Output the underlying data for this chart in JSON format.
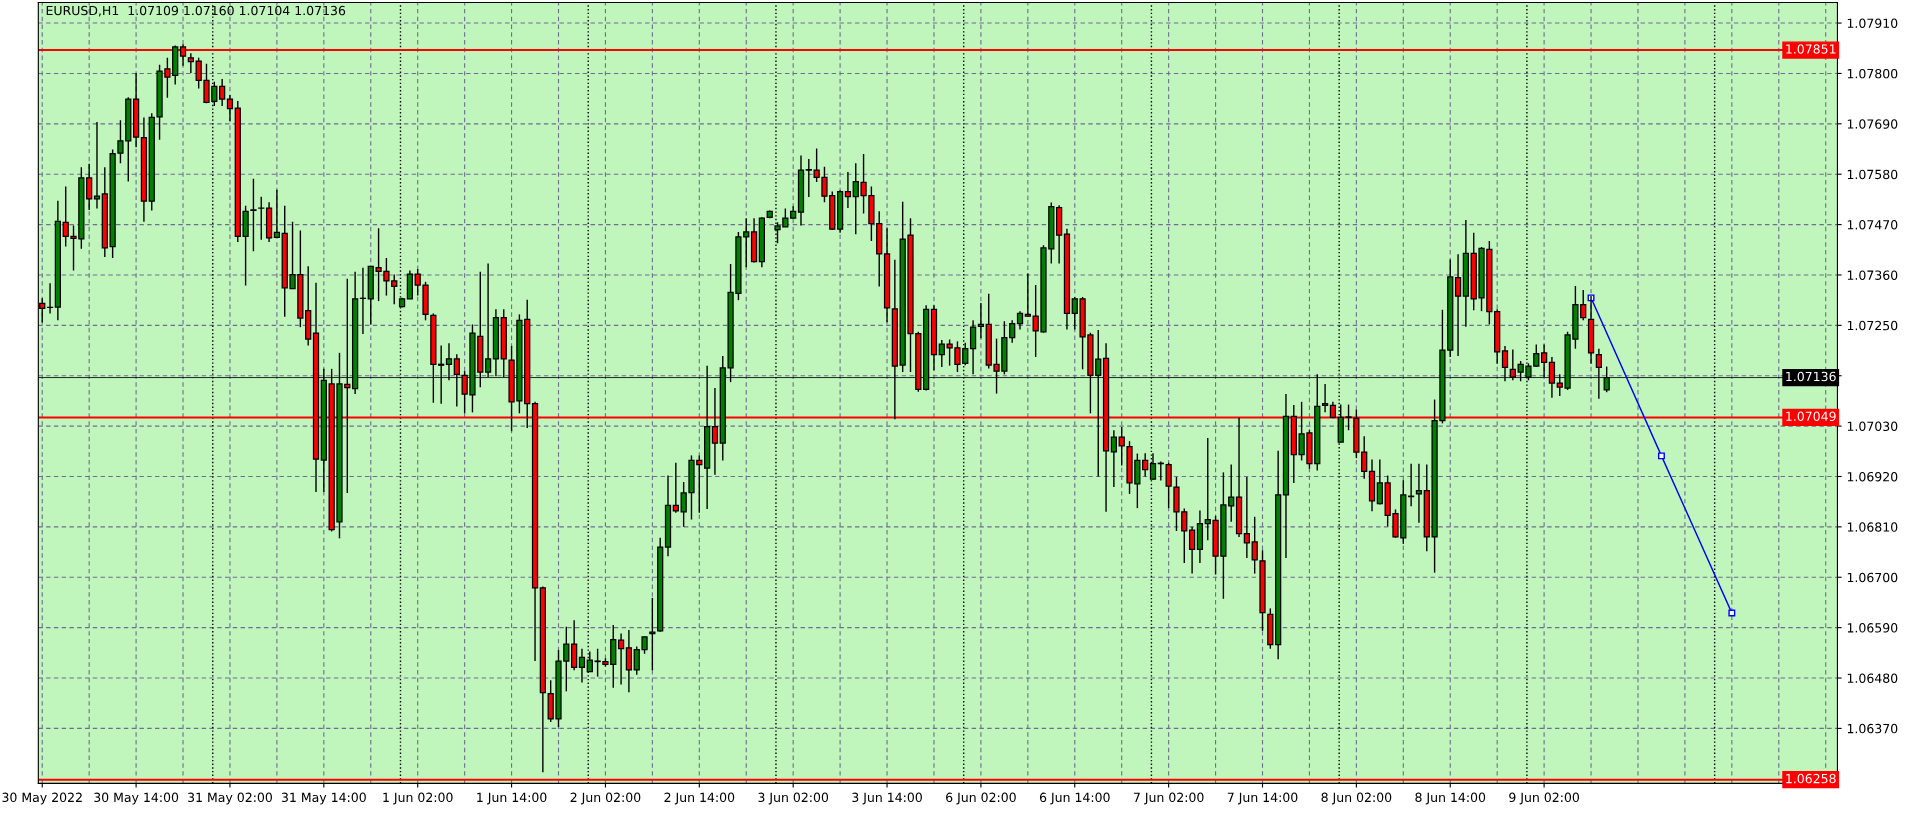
{
  "chart_data": {
    "type": "candlestick",
    "title": "EURUSD,H1  1.07109 1.07160 1.07104 1.07136",
    "categories": [
      "30 May 2022",
      null,
      null,
      null,
      null,
      null,
      null,
      null,
      null,
      null,
      null,
      null,
      "30 May 14:00",
      null,
      null,
      null,
      null,
      null,
      null,
      null,
      null,
      null,
      null,
      null,
      "31 May 02:00",
      null,
      null,
      null,
      null,
      null,
      null,
      null,
      null,
      null,
      null,
      null,
      "31 May 14:00",
      null,
      null,
      null,
      null,
      null,
      null,
      null,
      null,
      null,
      null,
      null,
      "1 Jun 02:00",
      null,
      null,
      null,
      null,
      null,
      null,
      null,
      null,
      null,
      null,
      null,
      "1 Jun 14:00",
      null,
      null,
      null,
      null,
      null,
      null,
      null,
      null,
      null,
      null,
      null,
      "2 Jun 02:00",
      null,
      null,
      null,
      null,
      null,
      null,
      null,
      null,
      null,
      null,
      null,
      "2 Jun 14:00",
      null,
      null,
      null,
      null,
      null,
      null,
      null,
      null,
      null,
      null,
      null,
      "3 Jun 02:00",
      null,
      null,
      null,
      null,
      null,
      null,
      null,
      null,
      null,
      null,
      null,
      "3 Jun 14:00",
      null,
      null,
      null,
      null,
      null,
      null,
      null,
      null,
      null,
      null,
      null,
      "6 Jun 02:00",
      null,
      null,
      null,
      null,
      null,
      null,
      null,
      null,
      null,
      null,
      null,
      "6 Jun 14:00",
      null,
      null,
      null,
      null,
      null,
      null,
      null,
      null,
      null,
      null,
      null,
      "7 Jun 02:00",
      null,
      null,
      null,
      null,
      null,
      null,
      null,
      null,
      null,
      null,
      null,
      "7 Jun 14:00",
      null,
      null,
      null,
      null,
      null,
      null,
      null,
      null,
      null,
      null,
      null,
      "8 Jun 02:00",
      null,
      null,
      null,
      null,
      null,
      null,
      null,
      null,
      null,
      null,
      null,
      "8 Jun 14:00",
      null,
      null,
      null,
      null,
      null,
      null,
      null,
      null,
      null,
      null,
      null,
      "9 Jun 02:00",
      null,
      null,
      null,
      null,
      null,
      null,
      null,
      null,
      null,
      null,
      null,
      null,
      null,
      null,
      null,
      null,
      null,
      null,
      null,
      null,
      null,
      null,
      null,
      null,
      null,
      null,
      null,
      null,
      null,
      null,
      null,
      null,
      null,
      null,
      null,
      null,
      null
    ],
    "ylim": [
      1.0625,
      1.07955
    ],
    "yticks": [
      {
        "value": 1.0637,
        "label": "1.06370"
      },
      {
        "value": 1.0648,
        "label": "1.06480"
      },
      {
        "value": 1.0659,
        "label": "1.06590"
      },
      {
        "value": 1.067,
        "label": "1.06700"
      },
      {
        "value": 1.0681,
        "label": "1.06810"
      },
      {
        "value": 1.0692,
        "label": "1.06920"
      },
      {
        "value": 1.0703,
        "label": "1.07030"
      },
      {
        "value": 1.0714,
        "label": null
      },
      {
        "value": 1.0725,
        "label": "1.07250"
      },
      {
        "value": 1.0736,
        "label": "1.07360"
      },
      {
        "value": 1.0747,
        "label": "1.07470"
      },
      {
        "value": 1.0758,
        "label": "1.07580"
      },
      {
        "value": 1.0769,
        "label": "1.07690"
      },
      {
        "value": 1.078,
        "label": "1.07800"
      },
      {
        "value": 1.0791,
        "label": "1.07910"
      }
    ],
    "grid": true,
    "ref_lines": [
      {
        "axis": "y",
        "value": 1.07851,
        "label": "1.07851",
        "color": "#ff0000",
        "line_style": "solid"
      },
      {
        "axis": "y",
        "value": 1.07049,
        "label": "1.07049",
        "color": "#ff0000",
        "line_style": "solid"
      },
      {
        "axis": "y",
        "value": 1.06258,
        "label": "1.06258",
        "color": "#ff0000",
        "line_style": "solid"
      },
      {
        "axis": "y",
        "value": 1.07136,
        "label": "1.07136",
        "color": "#000000",
        "line_style": "solid"
      }
    ],
    "series": [
      {
        "ohlc": [
          [
            1.07298,
            1.07309,
            1.07256,
            1.07287
          ],
          [
            1.07289,
            1.07342,
            1.07276,
            1.07289
          ],
          [
            1.0729,
            1.07522,
            1.07261,
            1.07477
          ],
          [
            1.07475,
            1.07553,
            1.07422,
            1.07444
          ],
          [
            1.07444,
            1.07468,
            1.0737,
            1.0744
          ],
          [
            1.07439,
            1.07595,
            1.07417,
            1.07572
          ],
          [
            1.07572,
            1.07603,
            1.07502,
            1.07526
          ],
          [
            1.07526,
            1.07694,
            1.07505,
            1.07532
          ],
          [
            1.07537,
            1.07595,
            1.07399,
            1.07419
          ],
          [
            1.07422,
            1.07634,
            1.07397,
            1.07625
          ],
          [
            1.07626,
            1.07698,
            1.07604,
            1.07653
          ],
          [
            1.07653,
            1.07748,
            1.07564,
            1.07744
          ],
          [
            1.07744,
            1.07801,
            1.07639,
            1.07661
          ],
          [
            1.0766,
            1.07704,
            1.07476,
            1.07521
          ],
          [
            1.07521,
            1.07713,
            1.07501,
            1.07704
          ],
          [
            1.07705,
            1.07819,
            1.07655,
            1.07805
          ],
          [
            1.0781,
            1.07834,
            1.07747,
            1.07792
          ],
          [
            1.07796,
            1.07861,
            1.07776,
            1.07858
          ],
          [
            1.07858,
            1.07864,
            1.07817,
            1.07838
          ],
          [
            1.07834,
            1.07844,
            1.07801,
            1.07826
          ],
          [
            1.07827,
            1.07834,
            1.07767,
            1.07785
          ],
          [
            1.07785,
            1.07821,
            1.07735,
            1.07737
          ],
          [
            1.07739,
            1.07782,
            1.07729,
            1.07772
          ],
          [
            1.07772,
            1.07788,
            1.07729,
            1.07744
          ],
          [
            1.07744,
            1.07753,
            1.07696,
            1.07723
          ],
          [
            1.07724,
            1.0774,
            1.07432,
            1.07444
          ],
          [
            1.07444,
            1.07511,
            1.07337,
            1.07499
          ],
          [
            1.07502,
            1.0757,
            1.07412,
            1.07501
          ],
          [
            1.07506,
            1.07531,
            1.07437,
            1.07506
          ],
          [
            1.07506,
            1.07519,
            1.07432,
            1.07441
          ],
          [
            1.07442,
            1.07546,
            1.07441,
            1.07453
          ],
          [
            1.07451,
            1.07511,
            1.07269,
            1.07332
          ],
          [
            1.0733,
            1.07476,
            1.0733,
            1.07361
          ],
          [
            1.07361,
            1.07457,
            1.07246,
            1.07266
          ],
          [
            1.07282,
            1.07379,
            1.07206,
            1.0722
          ],
          [
            1.07233,
            1.07343,
            1.06886,
            1.06958
          ],
          [
            1.06956,
            1.07155,
            1.06886,
            1.0713
          ],
          [
            1.07122,
            1.07155,
            1.068,
            1.06804
          ],
          [
            1.06821,
            1.0719,
            1.06785,
            1.07122
          ],
          [
            1.07121,
            1.07352,
            1.06884,
            1.07114
          ],
          [
            1.07112,
            1.07367,
            1.071,
            1.07308
          ],
          [
            1.07309,
            1.07376,
            1.07231,
            1.07309
          ],
          [
            1.07308,
            1.07379,
            1.07252,
            1.07379
          ],
          [
            1.07376,
            1.07462,
            1.07303,
            1.07368
          ],
          [
            1.07368,
            1.07397,
            1.07315,
            1.07347
          ],
          [
            1.07347,
            1.07361,
            1.07296,
            1.07335
          ],
          [
            1.07291,
            1.0731,
            1.07289,
            1.07308
          ],
          [
            1.07308,
            1.0737,
            1.07308,
            1.07362
          ],
          [
            1.07362,
            1.07373,
            1.07315,
            1.07338
          ],
          [
            1.07338,
            1.07345,
            1.07261,
            1.07274
          ],
          [
            1.07272,
            1.07276,
            1.07081,
            1.07165
          ],
          [
            1.07165,
            1.07206,
            1.07079,
            1.07163
          ],
          [
            1.07165,
            1.07211,
            1.0713,
            1.07177
          ],
          [
            1.07177,
            1.07187,
            1.07073,
            1.07143
          ],
          [
            1.07141,
            1.0715,
            1.07058,
            1.071
          ],
          [
            1.07098,
            1.07252,
            1.0706,
            1.07233
          ],
          [
            1.07226,
            1.07367,
            1.07115,
            1.07148
          ],
          [
            1.07148,
            1.07385,
            1.07137,
            1.07177
          ],
          [
            1.07177,
            1.07285,
            1.07139,
            1.07267
          ],
          [
            1.07267,
            1.07285,
            1.07137,
            1.07177
          ],
          [
            1.07174,
            1.07205,
            1.07019,
            1.07083
          ],
          [
            1.07085,
            1.07274,
            1.07058,
            1.07261
          ],
          [
            1.07263,
            1.07306,
            1.07026,
            1.07079
          ],
          [
            1.07079,
            1.07083,
            1.06517,
            1.06677
          ],
          [
            1.06677,
            1.0668,
            1.06274,
            1.06448
          ],
          [
            1.06446,
            1.06475,
            1.06384,
            1.06391
          ],
          [
            1.06391,
            1.06541,
            1.06373,
            1.06517
          ],
          [
            1.06517,
            1.06592,
            1.06451,
            1.06554
          ],
          [
            1.06554,
            1.06606,
            1.06497,
            1.06503
          ],
          [
            1.06503,
            1.06544,
            1.0647,
            1.06525
          ],
          [
            1.06494,
            1.06538,
            1.06494,
            1.06519
          ],
          [
            1.06517,
            1.06544,
            1.06483,
            1.06516
          ],
          [
            1.06516,
            1.06523,
            1.06505,
            1.0651
          ],
          [
            1.0651,
            1.06596,
            1.06459,
            1.06564
          ],
          [
            1.06563,
            1.06577,
            1.06466,
            1.06544
          ],
          [
            1.06546,
            1.06585,
            1.06449,
            1.06498
          ],
          [
            1.06498,
            1.06549,
            1.06487,
            1.06542
          ],
          [
            1.06542,
            1.0657,
            1.06533,
            1.0657
          ],
          [
            1.06577,
            1.06655,
            1.06497,
            1.0658
          ],
          [
            1.06583,
            1.06786,
            1.06581,
            1.06766
          ],
          [
            1.06766,
            1.06922,
            1.06746,
            1.06857
          ],
          [
            1.06857,
            1.0695,
            1.06841,
            1.06845
          ],
          [
            1.06843,
            1.06908,
            1.0681,
            1.06884
          ],
          [
            1.06885,
            1.06966,
            1.06826,
            1.06955
          ],
          [
            1.06955,
            1.06966,
            1.06841,
            1.06946
          ],
          [
            1.06938,
            1.07162,
            1.06849,
            1.07029
          ],
          [
            1.07029,
            1.07113,
            1.06924,
            1.06993
          ],
          [
            1.06993,
            1.07183,
            1.06955,
            1.07157
          ],
          [
            1.07157,
            1.07384,
            1.07126,
            1.07322
          ],
          [
            1.0732,
            1.07454,
            1.07305,
            1.07443
          ],
          [
            1.07443,
            1.07484,
            1.07377,
            1.07454
          ],
          [
            1.07454,
            1.07484,
            1.07387,
            1.07389
          ],
          [
            1.07389,
            1.07486,
            1.07377,
            1.07484
          ],
          [
            1.07486,
            1.07501,
            1.07484,
            1.07499
          ],
          [
            1.07459,
            1.07475,
            1.07429,
            1.07467
          ],
          [
            1.07465,
            1.07505,
            1.07465,
            1.07484
          ],
          [
            1.07484,
            1.0751,
            1.07484,
            1.07499
          ],
          [
            1.07497,
            1.07621,
            1.07468,
            1.07589
          ],
          [
            1.07589,
            1.07613,
            1.0753,
            1.0759
          ],
          [
            1.07589,
            1.07636,
            1.07563,
            1.07573
          ],
          [
            1.07573,
            1.07596,
            1.07519,
            1.07532
          ],
          [
            1.07533,
            1.07542,
            1.07458,
            1.0746
          ],
          [
            1.0746,
            1.07545,
            1.07452,
            1.07542
          ],
          [
            1.07542,
            1.07585,
            1.07506,
            1.07531
          ],
          [
            1.07531,
            1.07604,
            1.07449,
            1.07564
          ],
          [
            1.07562,
            1.07624,
            1.07494,
            1.07533
          ],
          [
            1.07533,
            1.07553,
            1.07434,
            1.07472
          ],
          [
            1.07472,
            1.07499,
            1.07335,
            1.07406
          ],
          [
            1.07406,
            1.07462,
            1.07257,
            1.07288
          ],
          [
            1.07286,
            1.07393,
            1.07045,
            1.07161
          ],
          [
            1.07163,
            1.0752,
            1.07148,
            1.07438
          ],
          [
            1.07447,
            1.07484,
            1.07148,
            1.07232
          ],
          [
            1.07232,
            1.07236,
            1.07105,
            1.0711
          ],
          [
            1.0711,
            1.07294,
            1.07108,
            1.07285
          ],
          [
            1.07285,
            1.07294,
            1.07152,
            1.07186
          ],
          [
            1.07186,
            1.07218,
            1.07159,
            1.07209
          ],
          [
            1.07209,
            1.07219,
            1.07162,
            1.07201
          ],
          [
            1.07201,
            1.07215,
            1.07148,
            1.07165
          ],
          [
            1.07167,
            1.07212,
            1.07163,
            1.07199
          ],
          [
            1.07199,
            1.07261,
            1.07143,
            1.07246
          ],
          [
            1.07248,
            1.07299,
            1.07222,
            1.07252
          ],
          [
            1.07252,
            1.07319,
            1.07156,
            1.07163
          ],
          [
            1.07165,
            1.07221,
            1.07101,
            1.0715
          ],
          [
            1.0715,
            1.07259,
            1.07143,
            1.07223
          ],
          [
            1.07223,
            1.07261,
            1.07212,
            1.07254
          ],
          [
            1.07254,
            1.07281,
            1.07241,
            1.07276
          ],
          [
            1.07274,
            1.07363,
            1.07268,
            1.0727
          ],
          [
            1.0727,
            1.07338,
            1.07181,
            1.07238
          ],
          [
            1.07236,
            1.07425,
            1.07234,
            1.07419
          ],
          [
            1.07417,
            1.07518,
            1.07385,
            1.07509
          ],
          [
            1.07507,
            1.07512,
            1.07385,
            1.07447
          ],
          [
            1.07449,
            1.07461,
            1.07241,
            1.07276
          ],
          [
            1.07276,
            1.07312,
            1.07241,
            1.07308
          ],
          [
            1.07308,
            1.07312,
            1.07154,
            1.07225
          ],
          [
            1.07229,
            1.07234,
            1.07058,
            1.07141
          ],
          [
            1.07141,
            1.0724,
            1.0692,
            1.07176
          ],
          [
            1.07178,
            1.07211,
            1.06843,
            1.06976
          ],
          [
            1.06974,
            1.07021,
            1.06897,
            1.07006
          ],
          [
            1.07006,
            1.07028,
            1.06944,
            1.06987
          ],
          [
            1.06985,
            1.06997,
            1.06882,
            1.06906
          ],
          [
            1.06904,
            1.0697,
            1.06851,
            1.06955
          ],
          [
            1.06955,
            1.06971,
            1.0692,
            1.06935
          ],
          [
            1.06914,
            1.06971,
            1.06914,
            1.06948
          ],
          [
            1.06948,
            1.06953,
            1.06911,
            1.06949
          ],
          [
            1.06946,
            1.0695,
            1.06851,
            1.06899
          ],
          [
            1.06897,
            1.06919,
            1.06801,
            1.06843
          ],
          [
            1.06843,
            1.0685,
            1.06731,
            1.06801
          ],
          [
            1.06803,
            1.0681,
            1.06708,
            1.06761
          ],
          [
            1.06761,
            1.06846,
            1.06731,
            1.06817
          ],
          [
            1.06817,
            1.07004,
            1.06781,
            1.06826
          ],
          [
            1.06824,
            1.06834,
            1.06706,
            1.06746
          ],
          [
            1.06746,
            1.06929,
            1.06653,
            1.06858
          ],
          [
            1.06856,
            1.06946,
            1.06821,
            1.06875
          ],
          [
            1.06875,
            1.07049,
            1.06788,
            1.06795
          ],
          [
            1.06795,
            1.06919,
            1.06742,
            1.06775
          ],
          [
            1.06777,
            1.06832,
            1.06708,
            1.06738
          ],
          [
            1.06736,
            1.06759,
            1.06583,
            1.06623
          ],
          [
            1.06619,
            1.06632,
            1.06544,
            1.06553
          ],
          [
            1.06553,
            1.06976,
            1.06521,
            1.0688
          ],
          [
            1.0688,
            1.071,
            1.06742,
            1.07051
          ],
          [
            1.07051,
            1.07076,
            1.06906,
            1.06968
          ],
          [
            1.06968,
            1.07083,
            1.06955,
            1.07013
          ],
          [
            1.07015,
            1.07021,
            1.06937,
            1.06948
          ],
          [
            1.06948,
            1.07143,
            1.06933,
            1.07073
          ],
          [
            1.07075,
            1.07122,
            1.0706,
            1.07079
          ],
          [
            1.07075,
            1.07083,
            1.07047,
            1.07049
          ],
          [
            1.06995,
            1.07077,
            1.06995,
            1.07049
          ],
          [
            1.07049,
            1.07077,
            1.07021,
            1.0705
          ],
          [
            1.07047,
            1.07066,
            1.0696,
            1.06973
          ],
          [
            1.06973,
            1.07008,
            1.06915,
            1.06931
          ],
          [
            1.06931,
            1.06957,
            1.06844,
            1.06867
          ],
          [
            1.06861,
            1.06957,
            1.06859,
            1.06906
          ],
          [
            1.06906,
            1.06922,
            1.06811,
            1.06835
          ],
          [
            1.06839,
            1.06848,
            1.06786,
            1.06788
          ],
          [
            1.06786,
            1.06912,
            1.06773,
            1.0688
          ],
          [
            1.06877,
            1.06948,
            1.06855,
            1.06876
          ],
          [
            1.06882,
            1.06948,
            1.06819,
            1.06889
          ],
          [
            1.06889,
            1.06946,
            1.06757,
            1.06788
          ],
          [
            1.06788,
            1.07088,
            1.0671,
            1.07042
          ],
          [
            1.07042,
            1.07284,
            1.07036,
            1.07196
          ],
          [
            1.07196,
            1.07394,
            1.07181,
            1.07356
          ],
          [
            1.07354,
            1.07405,
            1.07183,
            1.07314
          ],
          [
            1.07314,
            1.0748,
            1.07247,
            1.07407
          ],
          [
            1.07407,
            1.07452,
            1.07283,
            1.07308
          ],
          [
            1.0731,
            1.07421,
            1.07281,
            1.07418
          ],
          [
            1.07416,
            1.07434,
            1.07252,
            1.0728
          ],
          [
            1.0728,
            1.07285,
            1.07166,
            1.07192
          ],
          [
            1.07194,
            1.07205,
            1.07128,
            1.07158
          ],
          [
            1.07154,
            1.07197,
            1.0713,
            1.07137
          ],
          [
            1.07148,
            1.07172,
            1.07128,
            1.07165
          ],
          [
            1.07137,
            1.07167,
            1.0713,
            1.07161
          ],
          [
            1.07161,
            1.07208,
            1.07159,
            1.07188
          ],
          [
            1.0719,
            1.07208,
            1.07137,
            1.07169
          ],
          [
            1.07169,
            1.07181,
            1.07092,
            1.07124
          ],
          [
            1.07124,
            1.07143,
            1.07096,
            1.07115
          ],
          [
            1.07113,
            1.07236,
            1.07109,
            1.07229
          ],
          [
            1.0722,
            1.07336,
            1.07199,
            1.07295
          ],
          [
            1.07295,
            1.07327,
            1.07261,
            1.07267
          ],
          [
            1.07263,
            1.07314,
            1.07166,
            1.0719
          ],
          [
            1.07186,
            1.07199,
            1.0709,
            1.07158
          ],
          [
            1.07109,
            1.0716,
            1.07104,
            1.07136
          ],
          null,
          null,
          null,
          null,
          null,
          null,
          null,
          null,
          null,
          null,
          null,
          null,
          null,
          null,
          null,
          null,
          null,
          null,
          null,
          null,
          null,
          null,
          null,
          null,
          null,
          null,
          null,
          null,
          null
        ],
        "colors": [
          "#ff0000",
          "#ff0000",
          "#008000",
          "#ff0000",
          "#ff0000",
          "#008000",
          "#ff0000",
          "#008000",
          "#ff0000",
          "#008000",
          "#008000",
          "#008000",
          "#ff0000",
          "#ff0000",
          "#008000",
          "#008000",
          "#ff0000",
          "#008000",
          "#ff0000",
          "#ff0000",
          "#ff0000",
          "#ff0000",
          "#008000",
          "#ff0000",
          "#ff0000",
          "#ff0000",
          "#008000",
          "#ff0000",
          "#ff0000",
          "#ff0000",
          "#008000",
          "#ff0000",
          "#008000",
          "#ff0000",
          "#ff0000",
          "#ff0000",
          "#008000",
          "#ff0000",
          "#008000",
          "#ff0000",
          "#008000",
          "#ff0000",
          "#008000",
          "#ff0000",
          "#ff0000",
          "#ff0000",
          "#008000",
          "#008000",
          "#ff0000",
          "#ff0000",
          "#ff0000",
          "#ff0000",
          "#008000",
          "#ff0000",
          "#ff0000",
          "#008000",
          "#ff0000",
          "#008000",
          "#008000",
          "#ff0000",
          "#ff0000",
          "#008000",
          "#ff0000",
          "#ff0000",
          "#ff0000",
          "#ff0000",
          "#008000",
          "#008000",
          "#ff0000",
          "#008000",
          "#008000",
          "#ff0000",
          "#ff0000",
          "#008000",
          "#ff0000",
          "#ff0000",
          "#008000",
          "#008000",
          "#008000",
          "#008000",
          "#008000",
          "#ff0000",
          "#008000",
          "#008000",
          "#ff0000",
          "#008000",
          "#ff0000",
          "#008000",
          "#008000",
          "#008000",
          "#008000",
          "#ff0000",
          "#008000",
          "#008000",
          "#008000",
          "#008000",
          "#008000",
          "#008000",
          "#008000",
          "#ff0000",
          "#ff0000",
          "#ff0000",
          "#008000",
          "#ff0000",
          "#008000",
          "#ff0000",
          "#ff0000",
          "#ff0000",
          "#ff0000",
          "#ff0000",
          "#008000",
          "#ff0000",
          "#ff0000",
          "#008000",
          "#ff0000",
          "#008000",
          "#ff0000",
          "#ff0000",
          "#008000",
          "#008000",
          "#008000",
          "#ff0000",
          "#ff0000",
          "#008000",
          "#008000",
          "#008000",
          "#ff0000",
          "#ff0000",
          "#008000",
          "#008000",
          "#ff0000",
          "#ff0000",
          "#008000",
          "#ff0000",
          "#ff0000",
          "#008000",
          "#ff0000",
          "#008000",
          "#ff0000",
          "#ff0000",
          "#008000",
          "#ff0000",
          "#008000",
          "#008000",
          "#ff0000",
          "#ff0000",
          "#ff0000",
          "#ff0000",
          "#008000",
          "#008000",
          "#ff0000",
          "#008000",
          "#008000",
          "#ff0000",
          "#ff0000",
          "#ff0000",
          "#ff0000",
          "#ff0000",
          "#008000",
          "#008000",
          "#ff0000",
          "#008000",
          "#ff0000",
          "#008000",
          "#008000",
          "#ff0000",
          "#008000",
          "#008000",
          "#ff0000",
          "#ff0000",
          "#ff0000",
          "#008000",
          "#ff0000",
          "#ff0000",
          "#008000",
          "#ff0000",
          "#008000",
          "#ff0000",
          "#008000",
          "#008000",
          "#008000",
          "#ff0000",
          "#008000",
          "#ff0000",
          "#008000",
          "#ff0000",
          "#ff0000",
          "#ff0000",
          "#ff0000",
          "#008000",
          "#008000",
          "#008000",
          "#ff0000",
          "#ff0000",
          "#ff0000",
          "#008000",
          "#008000",
          "#ff0000",
          "#ff0000",
          "#ff0000",
          "#008000",
          null,
          null,
          null,
          null,
          null,
          null,
          null,
          null,
          null,
          null,
          null,
          null,
          null,
          null,
          null,
          null,
          null,
          null,
          null,
          null,
          null,
          null,
          null,
          null,
          null,
          null,
          null,
          null,
          null
        ]
      },
      {
        "type": "line",
        "color": "#0000ff",
        "marker": "square",
        "values": [
          null,
          null,
          null,
          null,
          null,
          null,
          null,
          null,
          null,
          null,
          null,
          null,
          null,
          null,
          null,
          null,
          null,
          null,
          null,
          null,
          null,
          null,
          null,
          null,
          null,
          null,
          null,
          null,
          null,
          null,
          null,
          null,
          null,
          null,
          null,
          null,
          null,
          null,
          null,
          null,
          null,
          null,
          null,
          null,
          null,
          null,
          null,
          null,
          null,
          null,
          null,
          null,
          null,
          null,
          null,
          null,
          null,
          null,
          null,
          null,
          null,
          null,
          null,
          null,
          null,
          null,
          null,
          null,
          null,
          null,
          null,
          null,
          null,
          null,
          null,
          null,
          null,
          null,
          null,
          null,
          null,
          null,
          null,
          null,
          null,
          null,
          null,
          null,
          null,
          null,
          null,
          null,
          null,
          null,
          null,
          null,
          null,
          null,
          null,
          null,
          null,
          null,
          null,
          null,
          null,
          null,
          null,
          null,
          null,
          null,
          null,
          null,
          null,
          null,
          null,
          null,
          null,
          null,
          null,
          null,
          null,
          null,
          null,
          null,
          null,
          null,
          null,
          null,
          null,
          null,
          null,
          null,
          null,
          null,
          null,
          null,
          null,
          null,
          null,
          null,
          null,
          null,
          null,
          null,
          null,
          null,
          null,
          null,
          null,
          null,
          null,
          null,
          null,
          null,
          null,
          null,
          null,
          null,
          null,
          null,
          null,
          null,
          null,
          null,
          null,
          null,
          null,
          null,
          null,
          null,
          null,
          null,
          null,
          null,
          null,
          null,
          null,
          null,
          null,
          null,
          null,
          null,
          null,
          null,
          null,
          null,
          null,
          null,
          null,
          null,
          null,
          null,
          null,
          null,
          null,
          null,
          null,
          null,
          1.0731,
          null,
          null,
          null,
          null,
          null,
          null,
          null,
          null,
          1.06965,
          null,
          null,
          null,
          null,
          null,
          null,
          null,
          null,
          1.06622,
          null,
          null,
          null,
          null,
          null,
          null,
          null,
          null,
          null,
          null,
          null,
          null,
          null
        ]
      }
    ]
  }
}
